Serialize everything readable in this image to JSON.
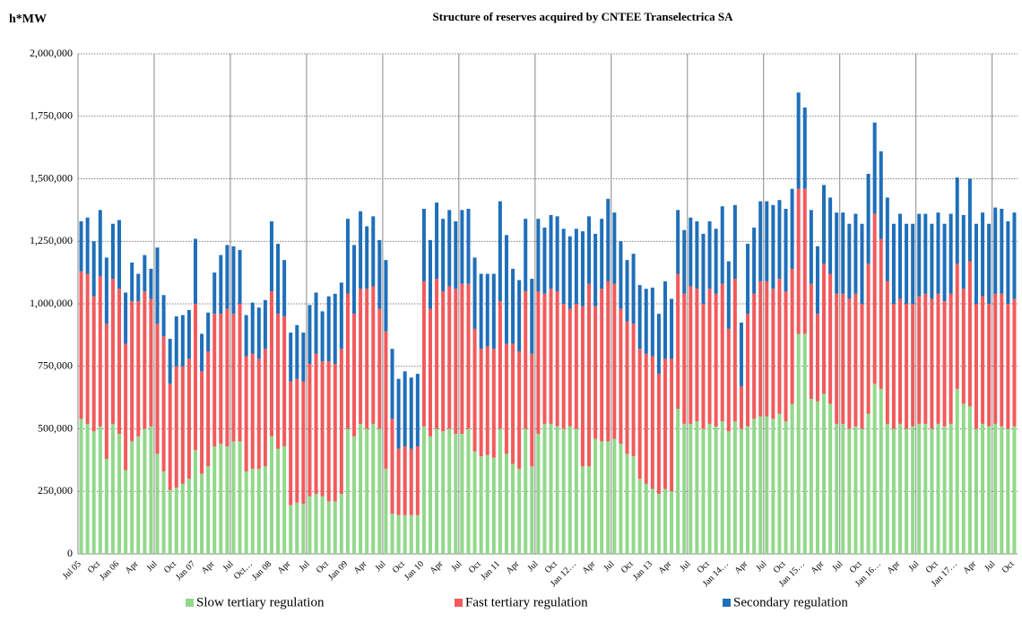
{
  "chart_data": {
    "type": "stacked-bar",
    "title": "Structure of reserves acquired by CNTEE Transelectrica SA",
    "y_label": "h*MW",
    "categories": [
      "Jul 05",
      null,
      null,
      "Oct",
      null,
      null,
      "Jan 06",
      null,
      null,
      "Apr",
      null,
      null,
      "Jul",
      null,
      null,
      "Oct",
      null,
      null,
      "Jan 07",
      null,
      null,
      "Apr",
      null,
      null,
      "Jul",
      null,
      null,
      "Oct…",
      null,
      null,
      "Jan 08",
      null,
      null,
      "Apr",
      null,
      null,
      "Jul",
      null,
      null,
      "Oct",
      null,
      null,
      "Jan 09",
      null,
      null,
      "Apr",
      null,
      null,
      "Jul",
      null,
      null,
      "Oct",
      null,
      null,
      "Jan 10",
      null,
      null,
      "Apr",
      null,
      null,
      "Jul",
      null,
      null,
      "Oct",
      null,
      null,
      "Jan 11",
      null,
      null,
      "Apr",
      null,
      null,
      "Jul",
      null,
      null,
      "Oct",
      null,
      null,
      "Jan 12…",
      null,
      null,
      "Apr",
      null,
      null,
      "Jul",
      null,
      null,
      "Oct",
      null,
      null,
      "Jan 13",
      null,
      null,
      "Apr",
      null,
      null,
      "Jul",
      null,
      null,
      "Oct",
      null,
      null,
      "Jan 14…",
      null,
      null,
      "Apr",
      null,
      null,
      "Jul",
      null,
      null,
      "Oct",
      null,
      null,
      "Jan 15…",
      null,
      null,
      "Apr",
      null,
      null,
      "Jul",
      null,
      null,
      "Oct",
      null,
      null,
      "Jan 16…",
      null,
      null,
      "Apr",
      null,
      null,
      "Jul",
      null,
      null,
      "Oct",
      null,
      null,
      "Jan 17…",
      null,
      null,
      "Apr",
      null,
      null,
      "Jul",
      null,
      null,
      "Oct"
    ],
    "series": [
      {
        "name": "Slow tertiary regulation",
        "color": "#92d88a",
        "values": [
          540000,
          520000,
          490000,
          510000,
          380000,
          520000,
          480000,
          335000,
          450000,
          470000,
          500000,
          510000,
          400000,
          330000,
          255000,
          265000,
          280000,
          300000,
          415000,
          320000,
          350000,
          430000,
          440000,
          430000,
          450000,
          450000,
          330000,
          340000,
          340000,
          350000,
          470000,
          420000,
          430000,
          195000,
          205000,
          200000,
          230000,
          240000,
          230000,
          210000,
          210000,
          240000,
          500000,
          470000,
          520000,
          500000,
          520000,
          500000,
          340000,
          160000,
          155000,
          155000,
          155000,
          155000,
          510000,
          470000,
          500000,
          490000,
          500000,
          480000,
          480000,
          500000,
          410000,
          390000,
          395000,
          385000,
          500000,
          400000,
          360000,
          340000,
          500000,
          350000,
          480000,
          520000,
          520000,
          510000,
          500000,
          510000,
          500000,
          350000,
          350000,
          460000,
          450000,
          450000,
          460000,
          440000,
          400000,
          390000,
          300000,
          280000,
          260000,
          240000,
          260000,
          250000,
          580000,
          520000,
          520000,
          530000,
          500000,
          520000,
          510000,
          530000,
          490000,
          530000,
          500000,
          510000,
          540000,
          550000,
          550000,
          540000,
          560000,
          530000,
          600000,
          880000,
          880000,
          620000,
          610000,
          640000,
          600000,
          520000,
          520000,
          500000,
          510000,
          500000,
          560000,
          680000,
          660000,
          520000,
          500000,
          520000,
          500000,
          510000,
          520000,
          520000,
          500000,
          520000,
          510000,
          520000,
          660000,
          600000,
          590000,
          500000,
          520000,
          510000,
          520000,
          510000,
          500000,
          510000
        ]
      },
      {
        "name": "Fast tertiary regulation",
        "color": "#f25a5c",
        "values": [
          590000,
          600000,
          540000,
          600000,
          540000,
          580000,
          580000,
          505000,
          560000,
          540000,
          550000,
          510000,
          520000,
          540000,
          425000,
          485000,
          470000,
          480000,
          585000,
          410000,
          460000,
          530000,
          520000,
          550000,
          510000,
          550000,
          460000,
          460000,
          440000,
          470000,
          580000,
          540000,
          520000,
          495000,
          495000,
          490000,
          530000,
          560000,
          540000,
          560000,
          550000,
          580000,
          540000,
          490000,
          540000,
          560000,
          550000,
          480000,
          550000,
          380000,
          265000,
          275000,
          265000,
          275000,
          580000,
          510000,
          600000,
          560000,
          570000,
          580000,
          600000,
          580000,
          490000,
          430000,
          435000,
          435000,
          510000,
          440000,
          480000,
          470000,
          550000,
          450000,
          570000,
          520000,
          540000,
          540000,
          500000,
          470000,
          500000,
          640000,
          730000,
          530000,
          610000,
          640000,
          620000,
          540000,
          530000,
          530000,
          520000,
          520000,
          530000,
          480000,
          520000,
          530000,
          540000,
          520000,
          550000,
          530000,
          500000,
          540000,
          530000,
          550000,
          410000,
          570000,
          170000,
          450000,
          500000,
          540000,
          540000,
          520000,
          540000,
          520000,
          540000,
          580000,
          580000,
          460000,
          350000,
          520000,
          520000,
          520000,
          520000,
          520000,
          530000,
          500000,
          600000,
          680000,
          600000,
          570000,
          500000,
          500000,
          500000,
          490000,
          510000,
          520000,
          520000,
          520000,
          500000,
          520000,
          500000,
          460000,
          580000,
          500000,
          510000,
          490000,
          520000,
          530000,
          500000,
          510000
        ]
      },
      {
        "name": "Secondary regulation",
        "color": "#1f6fba",
        "values": [
          200000,
          225000,
          220000,
          265000,
          265000,
          220000,
          275000,
          205000,
          155000,
          110000,
          145000,
          120000,
          305000,
          165000,
          180000,
          200000,
          205000,
          195000,
          260000,
          150000,
          155000,
          165000,
          235000,
          255000,
          270000,
          215000,
          165000,
          205000,
          205000,
          195000,
          280000,
          280000,
          225000,
          195000,
          215000,
          195000,
          235000,
          245000,
          200000,
          260000,
          280000,
          265000,
          300000,
          275000,
          310000,
          250000,
          280000,
          275000,
          285000,
          280000,
          280000,
          300000,
          285000,
          290000,
          290000,
          275000,
          305000,
          290000,
          305000,
          270000,
          295000,
          300000,
          285000,
          300000,
          290000,
          300000,
          400000,
          435000,
          300000,
          285000,
          290000,
          300000,
          290000,
          265000,
          295000,
          300000,
          300000,
          290000,
          300000,
          300000,
          270000,
          290000,
          280000,
          330000,
          285000,
          270000,
          245000,
          280000,
          255000,
          260000,
          275000,
          240000,
          310000,
          240000,
          255000,
          255000,
          275000,
          270000,
          280000,
          270000,
          260000,
          310000,
          270000,
          295000,
          255000,
          280000,
          265000,
          320000,
          320000,
          335000,
          315000,
          330000,
          320000,
          385000,
          325000,
          295000,
          270000,
          315000,
          305000,
          325000,
          325000,
          300000,
          320000,
          320000,
          360000,
          365000,
          350000,
          335000,
          320000,
          340000,
          320000,
          320000,
          330000,
          320000,
          300000,
          325000,
          310000,
          320000,
          345000,
          295000,
          330000,
          320000,
          335000,
          320000,
          345000,
          340000,
          330000,
          345000
        ]
      }
    ],
    "ylim": [
      0,
      2000000
    ],
    "yticks": [
      0,
      {
        "value": 250000,
        "label": "250,000"
      },
      {
        "value": 500000,
        "label": "500,000"
      },
      {
        "value": 750000,
        "label": "750,000"
      },
      {
        "value": 1000000,
        "label": "1,000,000"
      },
      {
        "value": 1250000,
        "label": "1,250,000"
      },
      {
        "value": 1500000,
        "label": "1,500,000"
      },
      {
        "value": 1750000,
        "label": "1,750,000"
      },
      {
        "value": 2000000,
        "label": "2,000,000"
      }
    ],
    "grid": true,
    "legend": "bottom"
  }
}
